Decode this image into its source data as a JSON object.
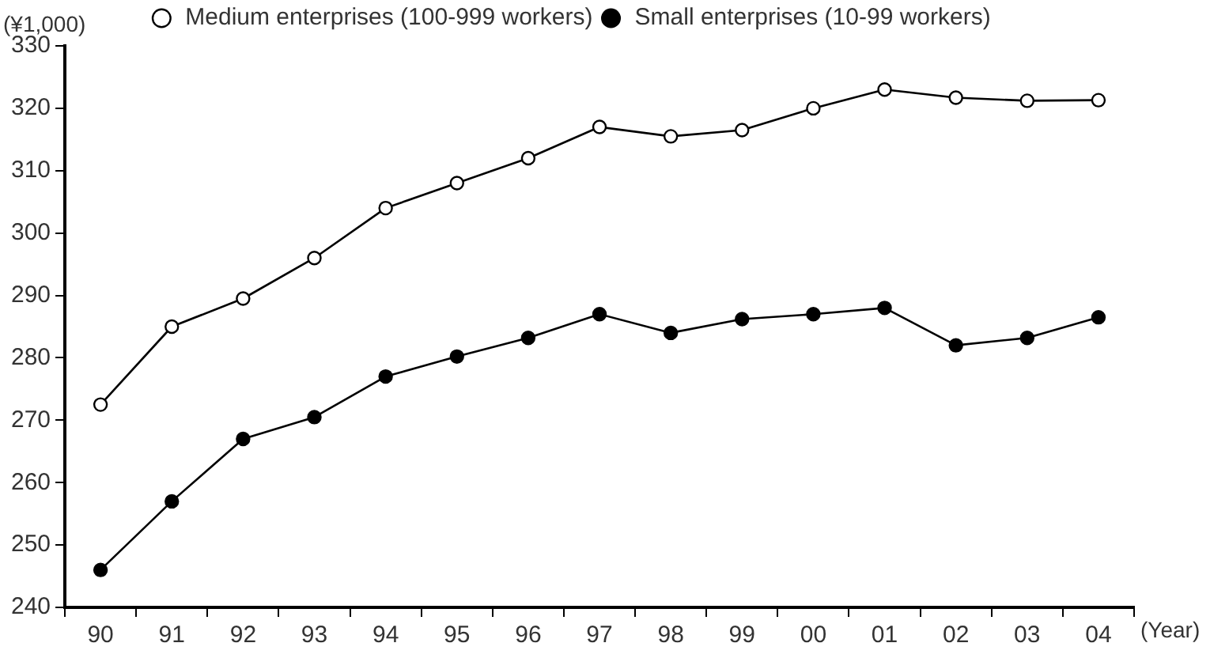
{
  "chart_data": {
    "type": "line",
    "ylabel": "(¥1,000)",
    "xlabel": "(Year)",
    "categories": [
      "90",
      "91",
      "92",
      "93",
      "94",
      "95",
      "96",
      "97",
      "98",
      "99",
      "00",
      "01",
      "02",
      "03",
      "04"
    ],
    "series": [
      {
        "name": "Medium enterprises (100-999 workers)",
        "color": "#000000",
        "values": [
          272.5,
          285,
          289.5,
          296,
          304,
          308,
          312,
          317,
          315.5,
          316.5,
          320,
          323,
          321.7,
          321.2,
          321.3
        ]
      },
      {
        "name": "Small enterprises (10-99 workers)",
        "color": "#000000",
        "values": [
          246,
          257,
          267,
          270.5,
          277,
          280.2,
          283.2,
          287,
          284,
          286.2,
          287,
          288,
          282,
          283.2,
          286.5
        ]
      }
    ],
    "ylim": [
      240,
      330
    ],
    "yticks": [
      240,
      250,
      260,
      270,
      280,
      290,
      300,
      310,
      320,
      330
    ],
    "grid": false,
    "legend": "top",
    "marker": "circle",
    "line_style": "solid"
  }
}
